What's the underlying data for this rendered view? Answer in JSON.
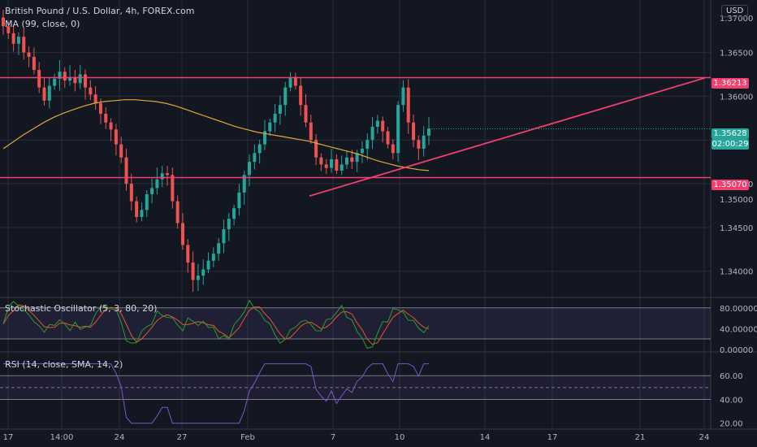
{
  "header": {
    "symbol_title": "British Pound / U.S. Dollar, 4h, FOREX.com",
    "ma_label": "MA (99, close, 0)",
    "currency_badge": "USD"
  },
  "colors": {
    "background": "#131722",
    "grid": "#2a2e39",
    "up": "#26a69a",
    "down": "#ef5350",
    "ma": "#e0a83a",
    "level_line": "#f23f6e",
    "trend_line": "#f23f6e",
    "stoch_k": "#2e9c2e",
    "stoch_d": "#e05a2a",
    "rsi": "#7e57c2"
  },
  "chart_data": [
    {
      "type": "candlestick",
      "title": "British Pound / U.S. Dollar, 4h, FOREX.com",
      "y_axis_ticks": [
        "1.36500",
        "1.36000",
        "1.35000",
        "1.34500",
        "1.34000"
      ],
      "ylim": [
        1.337,
        1.371
      ],
      "x_axis_ticks": [
        "17",
        "14:00",
        "24",
        "27",
        "Feb",
        "7",
        "10",
        "14",
        "17",
        "21",
        "24"
      ],
      "indicator": {
        "name": "MA (99, close, 0)"
      },
      "horizontal_levels": [
        {
          "value": 1.36213,
          "label": "1.36213"
        },
        {
          "value": 1.3507,
          "label": "1.35070"
        }
      ],
      "last_price": {
        "value": 1.35628,
        "label": "1.35628",
        "countdown": "02:00:29"
      },
      "top_partial_tick": "1.37000",
      "middle_partial_tick": "1.35000",
      "candles_close": [
        1.368,
        1.3672,
        1.366,
        1.3668,
        1.365,
        1.3645,
        1.363,
        1.361,
        1.3595,
        1.3612,
        1.362,
        1.3628,
        1.3618,
        1.3622,
        1.3615,
        1.3625,
        1.361,
        1.3602,
        1.3592,
        1.358,
        1.357,
        1.3562,
        1.3545,
        1.353,
        1.35,
        1.348,
        1.3462,
        1.347,
        1.3488,
        1.3495,
        1.3505,
        1.3512,
        1.351,
        1.348,
        1.3455,
        1.343,
        1.341,
        1.339,
        1.3395,
        1.3402,
        1.3412,
        1.342,
        1.3432,
        1.3448,
        1.346,
        1.3472,
        1.349,
        1.351,
        1.3525,
        1.3535,
        1.3545,
        1.356,
        1.357,
        1.358,
        1.359,
        1.361,
        1.3622,
        1.3612,
        1.359,
        1.357,
        1.355,
        1.353,
        1.3522,
        1.3518,
        1.3528,
        1.3515,
        1.3522,
        1.353,
        1.3525,
        1.3535,
        1.354,
        1.355,
        1.3565,
        1.3572,
        1.356,
        1.3545,
        1.3535,
        1.359,
        1.361,
        1.357,
        1.355,
        1.354,
        1.3555,
        1.3563
      ],
      "ma_values": [
        1.354,
        1.3548,
        1.3556,
        1.3563,
        1.357,
        1.3576,
        1.3581,
        1.3585,
        1.3589,
        1.3592,
        1.3594,
        1.3595,
        1.3596,
        1.3596,
        1.3595,
        1.3594,
        1.3592,
        1.3589,
        1.3585,
        1.3581,
        1.3577,
        1.3573,
        1.3569,
        1.3565,
        1.3562,
        1.3559,
        1.3557,
        1.3555,
        1.3553,
        1.3551,
        1.3549,
        1.3546,
        1.3543,
        1.354,
        1.3537,
        1.3534,
        1.353,
        1.3526,
        1.3523,
        1.352,
        1.3518,
        1.3516,
        1.3515
      ]
    },
    {
      "type": "line",
      "title": "Stochastic Oscillator (5, 3, 80, 20)",
      "y_axis_ticks": [
        "80.00000",
        "40.00000",
        "0.00000"
      ],
      "ylim": [
        -5,
        100
      ],
      "bands": [
        80,
        20
      ]
    },
    {
      "type": "line",
      "title": "RSI (14, close, SMA, 14, 2)",
      "y_axis_ticks": [
        "60.00",
        "40.00",
        "20.00"
      ],
      "ylim": [
        15,
        80
      ],
      "bands": [
        60,
        40
      ]
    }
  ]
}
